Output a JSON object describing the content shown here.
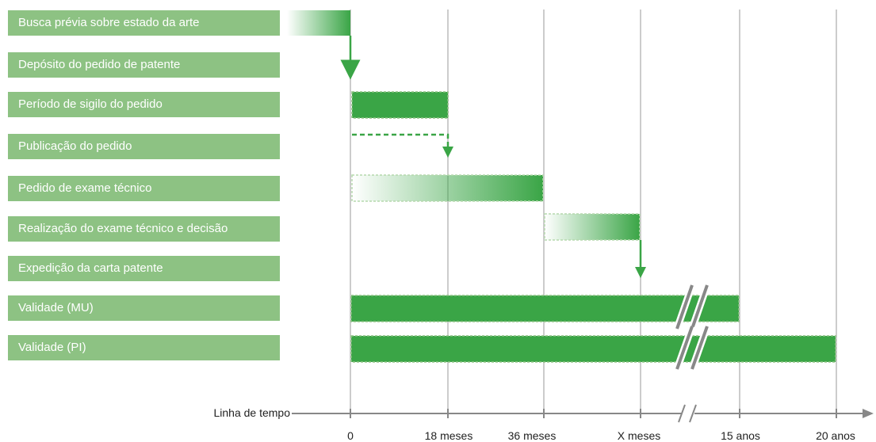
{
  "rows": [
    "Busca prévia sobre estado da arte",
    "Depósito do pedido de patente",
    "Período de sigilo do pedido",
    "Publicação do pedido",
    "Pedido de exame técnico",
    "Realização do exame técnico e decisão",
    "Expedição da carta patente",
    "Validade (MU)",
    "Validade (PI)"
  ],
  "axis": {
    "title": "Linha de tempo",
    "ticks": [
      "0",
      "18 meses",
      "36 meses",
      "X meses",
      "15 anos",
      "20 anos"
    ],
    "break_marker": "axis-break"
  },
  "colors": {
    "label_bg": "#8dc283",
    "bar": "#3aa546",
    "grid": "#cccccc",
    "axis": "#888888",
    "break": "#888888"
  }
}
